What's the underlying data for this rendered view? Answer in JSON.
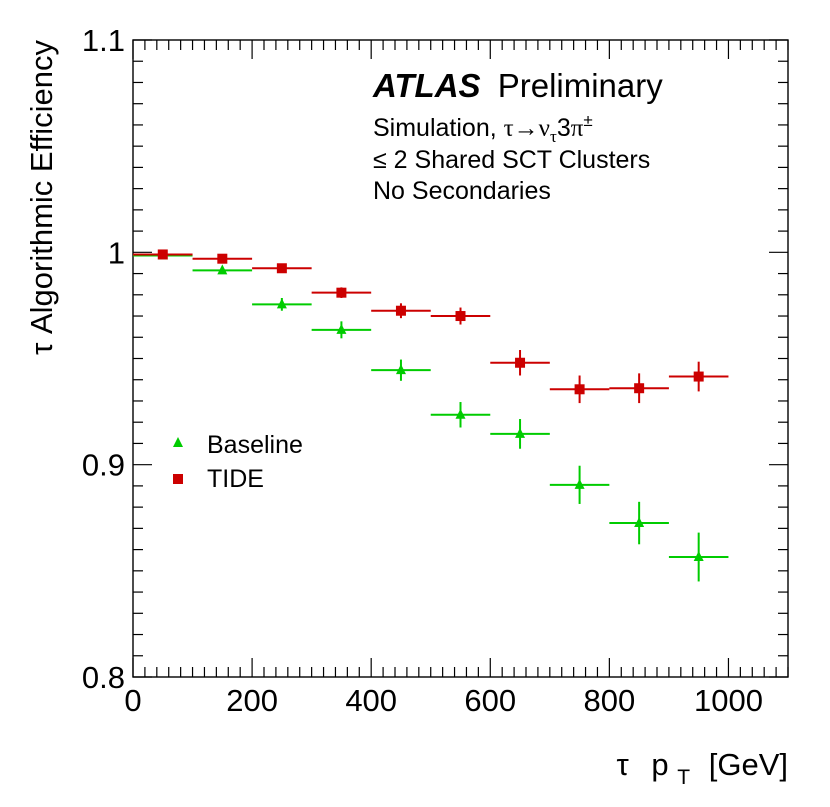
{
  "chart_data": {
    "type": "scatter",
    "title": "",
    "xlabel": {
      "prefix": "τ",
      "main": "p",
      "sub": "T",
      "unit": "[GeV]"
    },
    "ylabel": "τ  Algorithmic Efficiency",
    "xlim": [
      0,
      1100
    ],
    "ylim": [
      0.8,
      1.1
    ],
    "x_ticks": [
      0,
      200,
      400,
      600,
      800,
      1000
    ],
    "x_tick_labels": [
      "0",
      "200",
      "400",
      "600",
      "800",
      "1000"
    ],
    "y_ticks": [
      0.8,
      0.9,
      1.0,
      1.1
    ],
    "y_tick_labels": [
      "0.8",
      "0.9",
      "1",
      "1.1"
    ],
    "annotations": {
      "experiment": "ATLAS",
      "status": "Preliminary",
      "line1_prefix": "Simulation, ",
      "line1_decay": {
        "tau": "τ",
        "arrow": "→",
        "nu": "ν",
        "nu_sub": "τ",
        "three": "3",
        "pi": "π",
        "pi_sup": "±"
      },
      "line2": "≤ 2 Shared SCT Clusters",
      "line3": "No Secondaries"
    },
    "legend_position": "middle-left",
    "series": [
      {
        "name": "Baseline",
        "marker": "triangle",
        "color": "#00cc00",
        "points": [
          {
            "x": 50,
            "xerr": 50,
            "y": 0.9985,
            "yerr": 0.001
          },
          {
            "x": 150,
            "xerr": 50,
            "y": 0.9915,
            "yerr": 0.0015
          },
          {
            "x": 250,
            "xerr": 50,
            "y": 0.9755,
            "yerr": 0.003
          },
          {
            "x": 350,
            "xerr": 50,
            "y": 0.9635,
            "yerr": 0.004
          },
          {
            "x": 450,
            "xerr": 50,
            "y": 0.9445,
            "yerr": 0.005
          },
          {
            "x": 550,
            "xerr": 50,
            "y": 0.9235,
            "yerr": 0.006
          },
          {
            "x": 650,
            "xerr": 50,
            "y": 0.9145,
            "yerr": 0.007
          },
          {
            "x": 750,
            "xerr": 50,
            "y": 0.8905,
            "yerr": 0.009
          },
          {
            "x": 850,
            "xerr": 50,
            "y": 0.8725,
            "yerr": 0.01
          },
          {
            "x": 950,
            "xerr": 50,
            "y": 0.8565,
            "yerr": 0.0115
          }
        ]
      },
      {
        "name": "TIDE",
        "marker": "square",
        "color": "#cc0000",
        "points": [
          {
            "x": 50,
            "xerr": 50,
            "y": 0.999,
            "yerr": 0.0008
          },
          {
            "x": 150,
            "xerr": 50,
            "y": 0.997,
            "yerr": 0.001
          },
          {
            "x": 250,
            "xerr": 50,
            "y": 0.9925,
            "yerr": 0.0015
          },
          {
            "x": 350,
            "xerr": 50,
            "y": 0.981,
            "yerr": 0.0025
          },
          {
            "x": 450,
            "xerr": 50,
            "y": 0.9725,
            "yerr": 0.0035
          },
          {
            "x": 550,
            "xerr": 50,
            "y": 0.97,
            "yerr": 0.004
          },
          {
            "x": 650,
            "xerr": 50,
            "y": 0.948,
            "yerr": 0.006
          },
          {
            "x": 750,
            "xerr": 50,
            "y": 0.9355,
            "yerr": 0.0065
          },
          {
            "x": 850,
            "xerr": 50,
            "y": 0.936,
            "yerr": 0.007
          },
          {
            "x": 950,
            "xerr": 50,
            "y": 0.9415,
            "yerr": 0.007
          }
        ]
      }
    ]
  }
}
